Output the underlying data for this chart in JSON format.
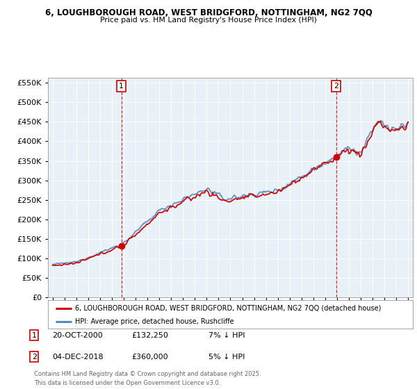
{
  "title_line1": "6, LOUGHBOROUGH ROAD, WEST BRIDGFORD, NOTTINGHAM, NG2 7QQ",
  "title_line2": "Price paid vs. HM Land Registry's House Price Index (HPI)",
  "legend_label_red": "6, LOUGHBOROUGH ROAD, WEST BRIDGFORD, NOTTINGHAM, NG2 7QQ (detached house)",
  "legend_label_blue": "HPI: Average price, detached house, Rushcliffe",
  "annotation1_date": "20-OCT-2000",
  "annotation1_price": "£132,250",
  "annotation1_hpi": "7% ↓ HPI",
  "annotation2_date": "04-DEC-2018",
  "annotation2_price": "£360,000",
  "annotation2_hpi": "5% ↓ HPI",
  "footer": "Contains HM Land Registry data © Crown copyright and database right 2025.\nThis data is licensed under the Open Government Licence v3.0.",
  "red_color": "#cc0000",
  "blue_color": "#5588bb",
  "fill_color": "#ddeeff",
  "background_color": "#ffffff",
  "plot_bg_color": "#e8f0f8",
  "grid_color": "#ffffff",
  "ylim_min": 0,
  "ylim_max": 562500,
  "marker1_year": 2000.8,
  "marker1_value": 132250,
  "marker2_year": 2018.92,
  "marker2_value": 360000,
  "xlim_min": 1994.6,
  "xlim_max": 2025.4
}
